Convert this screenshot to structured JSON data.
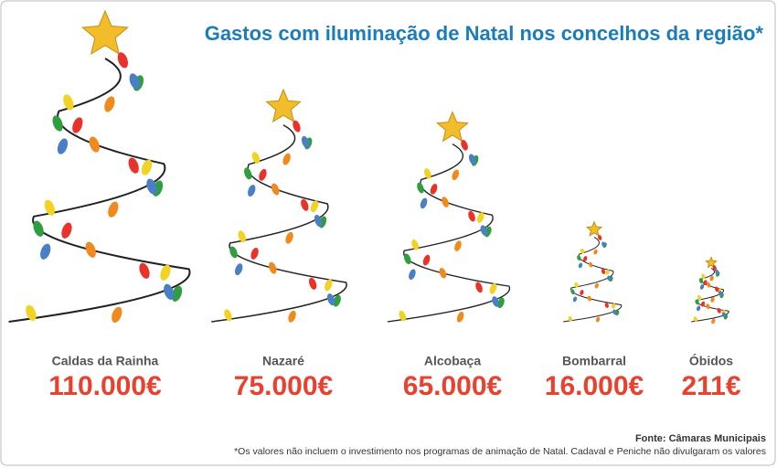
{
  "chart_data": {
    "type": "pictograph",
    "title": "Gastos com iluminação de Natal nos concelhos da região*",
    "categories": [
      "Caldas da Rainha",
      "Nazaré",
      "Alcobaça",
      "Bombarral",
      "Óbidos"
    ],
    "values": [
      110000,
      75000,
      65000,
      16000,
      211
    ],
    "value_labels": [
      "110.000€",
      "75.000€",
      "65.000€",
      "16.000€",
      "211€"
    ],
    "value_color": "#e8412f",
    "source": "Fonte: Câmaras Municipais",
    "note": "*Os valores não incluem o investimento nos programas de animação de Natal. Cadaval e Peniche não divulgaram os valores"
  }
}
